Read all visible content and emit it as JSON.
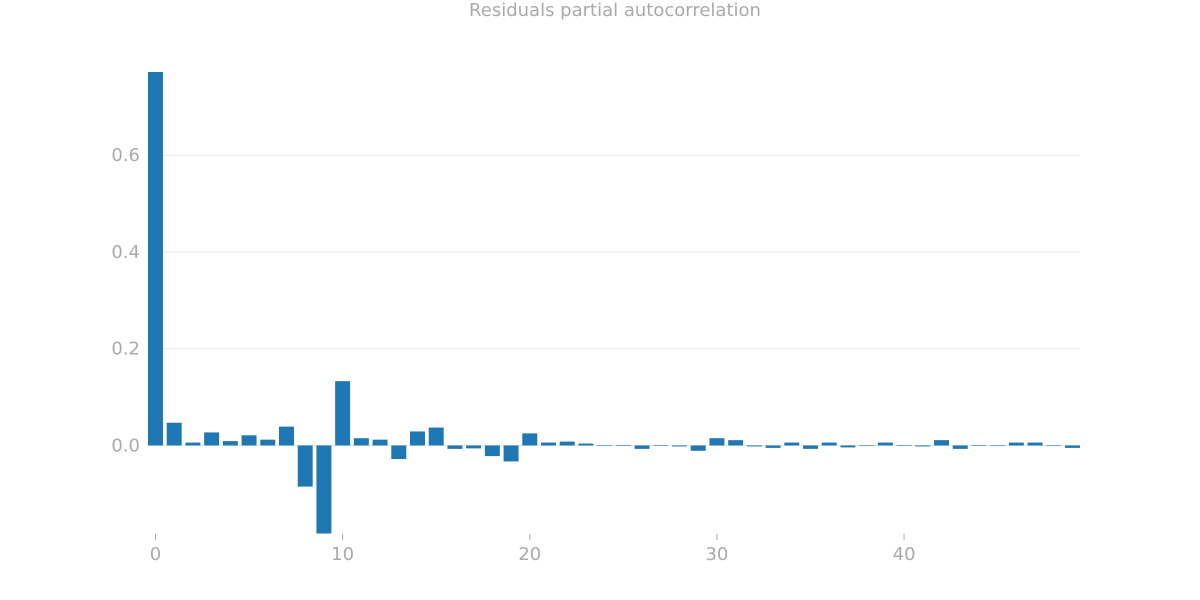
{
  "chart_data": {
    "type": "bar",
    "title": "Residuals partial autocorrelation",
    "xlabel": "",
    "ylabel": "",
    "x": [
      0,
      1,
      2,
      3,
      4,
      5,
      6,
      7,
      8,
      9,
      10,
      11,
      12,
      13,
      14,
      15,
      16,
      17,
      18,
      19,
      20,
      21,
      22,
      23,
      24,
      25,
      26,
      27,
      28,
      29,
      30,
      31,
      32,
      33,
      34,
      35,
      36,
      37,
      38,
      39,
      40,
      41,
      42,
      43,
      44,
      45,
      46,
      47,
      48,
      49
    ],
    "values": [
      0.772,
      0.047,
      0.006,
      0.027,
      0.009,
      0.021,
      0.012,
      0.039,
      -0.085,
      -0.182,
      0.133,
      0.015,
      0.012,
      -0.028,
      0.029,
      0.037,
      -0.007,
      -0.006,
      -0.022,
      -0.033,
      0.025,
      0.006,
      0.008,
      0.004,
      -0.001,
      0.001,
      -0.007,
      0.001,
      -0.002,
      -0.011,
      0.015,
      0.011,
      -0.002,
      -0.005,
      0.006,
      -0.007,
      0.006,
      -0.004,
      0.0,
      0.006,
      0.001,
      -0.002,
      0.011,
      -0.007,
      0.001,
      0.0,
      0.006,
      0.006,
      0.0,
      -0.005
    ],
    "ylim": [
      -0.183,
      0.772
    ],
    "xlim": [
      -0.4,
      49.4
    ],
    "yticks": [
      0.0,
      0.2,
      0.4,
      0.6
    ],
    "ytick_labels": [
      "0.0",
      "0.2",
      "0.4",
      "0.6"
    ],
    "xticks": [
      0,
      10,
      20,
      30,
      40
    ],
    "xtick_labels": [
      "0",
      "10",
      "20",
      "30",
      "40"
    ],
    "grid": true,
    "bar_color": "#1f77b4",
    "text_color": "#aaaaaa",
    "grid_color": "#e5e5e5"
  }
}
